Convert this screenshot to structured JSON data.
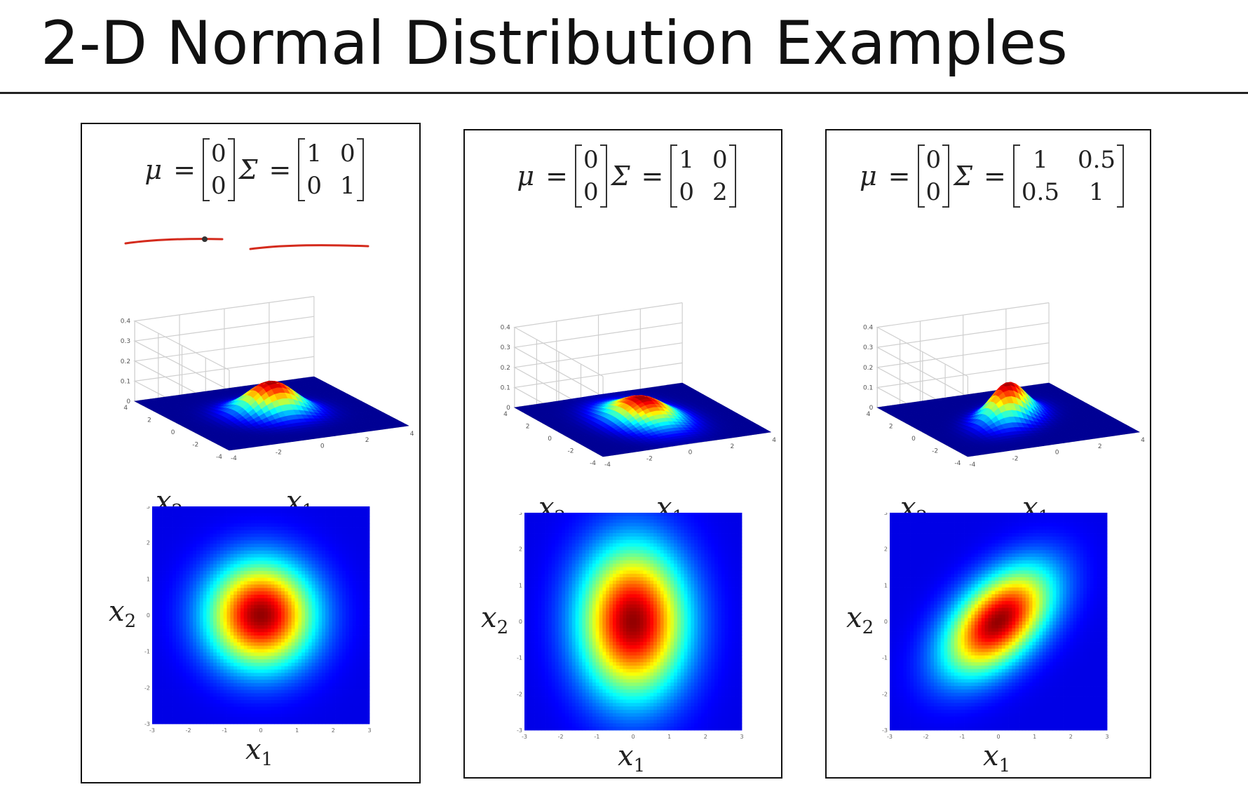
{
  "slide": {
    "title": "2-D Normal Distribution Examples"
  },
  "symbols": {
    "mu": "μ",
    "sigma": "Σ",
    "equals": "="
  },
  "chart_data": [
    {
      "type": "heatmap",
      "mu": [
        [
          "0"
        ],
        [
          "0"
        ]
      ],
      "sigma": [
        [
          "1",
          "0"
        ],
        [
          "0",
          "1"
        ]
      ],
      "cov": [
        [
          1,
          0
        ],
        [
          0,
          1
        ]
      ],
      "surface": {
        "zticks": [
          "0",
          "0.1",
          "0.2",
          "0.3",
          "0.4"
        ],
        "xticks": [
          "-4",
          "-2",
          "0",
          "2",
          "4"
        ],
        "yticks": [
          "-4",
          "-2",
          "0",
          "2",
          "4"
        ],
        "xlabel": "x",
        "xsub": "1",
        "ylabel": "x",
        "ysub": "2"
      },
      "contour": {
        "xticks": [
          "-3",
          "-2",
          "-1",
          "0",
          "1",
          "2",
          "3"
        ],
        "yticks": [
          "-3",
          "-2",
          "-1",
          "0",
          "1",
          "2",
          "3"
        ],
        "xlabel": "x",
        "xsub": "1",
        "ylabel": "x",
        "ysub": "2"
      }
    },
    {
      "type": "heatmap",
      "mu": [
        [
          "0"
        ],
        [
          "0"
        ]
      ],
      "sigma": [
        [
          "1",
          "0"
        ],
        [
          "0",
          "2"
        ]
      ],
      "cov": [
        [
          1,
          0
        ],
        [
          0,
          2
        ]
      ],
      "surface": {
        "zticks": [
          "0",
          "0.1",
          "0.2",
          "0.3",
          "0.4"
        ],
        "xticks": [
          "-4",
          "-2",
          "0",
          "2",
          "4"
        ],
        "yticks": [
          "-4",
          "-2",
          "0",
          "2",
          "4"
        ],
        "xlabel": "x",
        "xsub": "1",
        "ylabel": "x",
        "ysub": "2"
      },
      "contour": {
        "xticks": [
          "-3",
          "-2",
          "-1",
          "0",
          "1",
          "2",
          "3"
        ],
        "yticks": [
          "-3",
          "-2",
          "-1",
          "0",
          "1",
          "2",
          "3"
        ],
        "xlabel": "x",
        "xsub": "1",
        "ylabel": "x",
        "ysub": "2"
      }
    },
    {
      "type": "heatmap",
      "mu": [
        [
          "0"
        ],
        [
          "0"
        ]
      ],
      "sigma": [
        [
          "1",
          "0.5"
        ],
        [
          "0.5",
          "1"
        ]
      ],
      "cov": [
        [
          1,
          0.5
        ],
        [
          0.5,
          1
        ]
      ],
      "surface": {
        "zticks": [
          "0",
          "0.1",
          "0.2",
          "0.3",
          "0.4"
        ],
        "xticks": [
          "-4",
          "-2",
          "0",
          "2",
          "4"
        ],
        "yticks": [
          "-4",
          "-2",
          "0",
          "2",
          "4"
        ],
        "xlabel": "x",
        "xsub": "1",
        "ylabel": "x",
        "ysub": "2"
      },
      "contour": {
        "xticks": [
          "-3",
          "-2",
          "-1",
          "0",
          "1",
          "2",
          "3"
        ],
        "yticks": [
          "-3",
          "-2",
          "-1",
          "0",
          "1",
          "2",
          "3"
        ],
        "xlabel": "x",
        "xsub": "1",
        "ylabel": "x",
        "ysub": "2"
      }
    }
  ],
  "colors": {
    "annotation": "#d42a1c",
    "border": "#111111",
    "grid": "#cfcfcf"
  }
}
